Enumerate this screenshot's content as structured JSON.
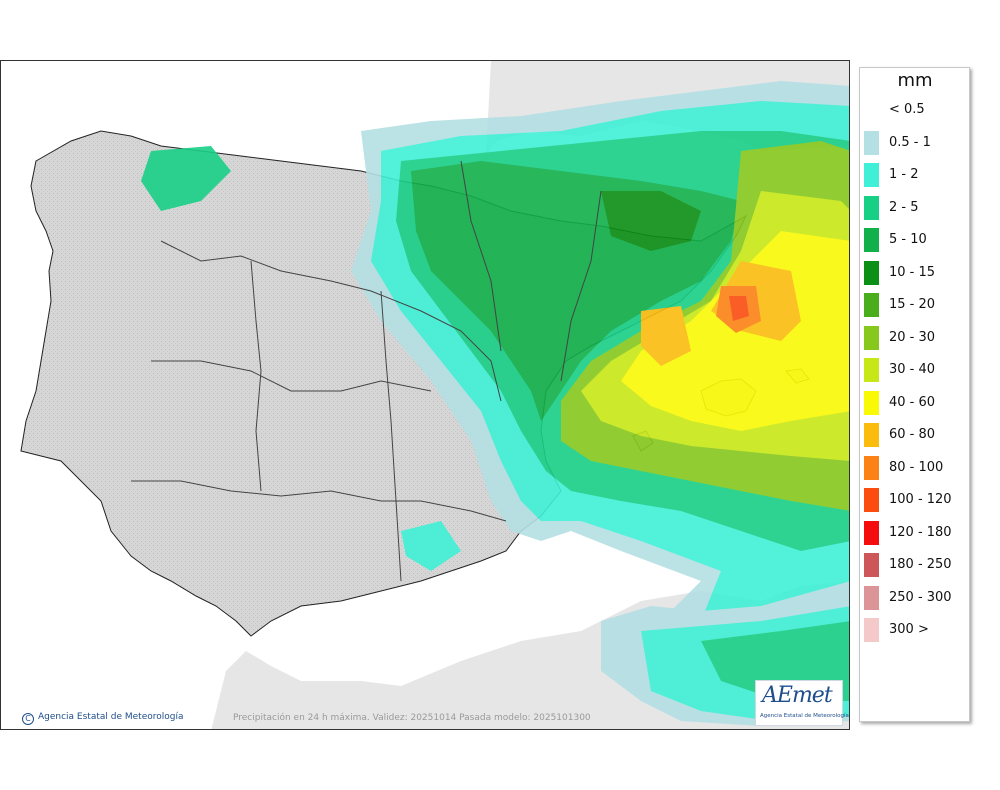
{
  "legend": {
    "unit": "mm",
    "items": [
      {
        "label": "< 0.5",
        "color": "#ffffff"
      },
      {
        "label": "0.5 - 1",
        "color": "#b4dfe3"
      },
      {
        "label": "1 - 2",
        "color": "#3ff0d6"
      },
      {
        "label": "2 - 5",
        "color": "#18cf86"
      },
      {
        "label": "5 - 10",
        "color": "#11b04a"
      },
      {
        "label": "10 - 15",
        "color": "#0b8f14"
      },
      {
        "label": "15 - 20",
        "color": "#49ad1c"
      },
      {
        "label": "20 - 30",
        "color": "#86c81c"
      },
      {
        "label": "30 - 40",
        "color": "#c7e716"
      },
      {
        "label": "40 - 60",
        "color": "#f9f905"
      },
      {
        "label": "60 - 80",
        "color": "#fbbc0e"
      },
      {
        "label": "80 - 100",
        "color": "#fb8214"
      },
      {
        "label": "100 - 120",
        "color": "#fa4d0f"
      },
      {
        "label": "120 - 180",
        "color": "#f50d0d"
      },
      {
        "label": "180 - 250",
        "color": "#cd5658"
      },
      {
        "label": "250 - 300",
        "color": "#dc9597"
      },
      {
        "label": "300 >",
        "color": "#f3c9c9"
      }
    ]
  },
  "footer": {
    "copyright_symbol": "C",
    "copyright": "Agencia Estatal de Meteorología",
    "caption": "Precipitación en 24 h máxima. Validez: 20251014 Pasada modelo: 2025101300"
  },
  "logo": {
    "brand": "AEmet",
    "subtitle": "Agencia Estatal de Meteorología"
  },
  "map": {
    "land_color": "#dcdcdc",
    "foreign_land_color": "#e8e8e8",
    "sea_color": "#ffffff",
    "border_color": "#222222"
  }
}
